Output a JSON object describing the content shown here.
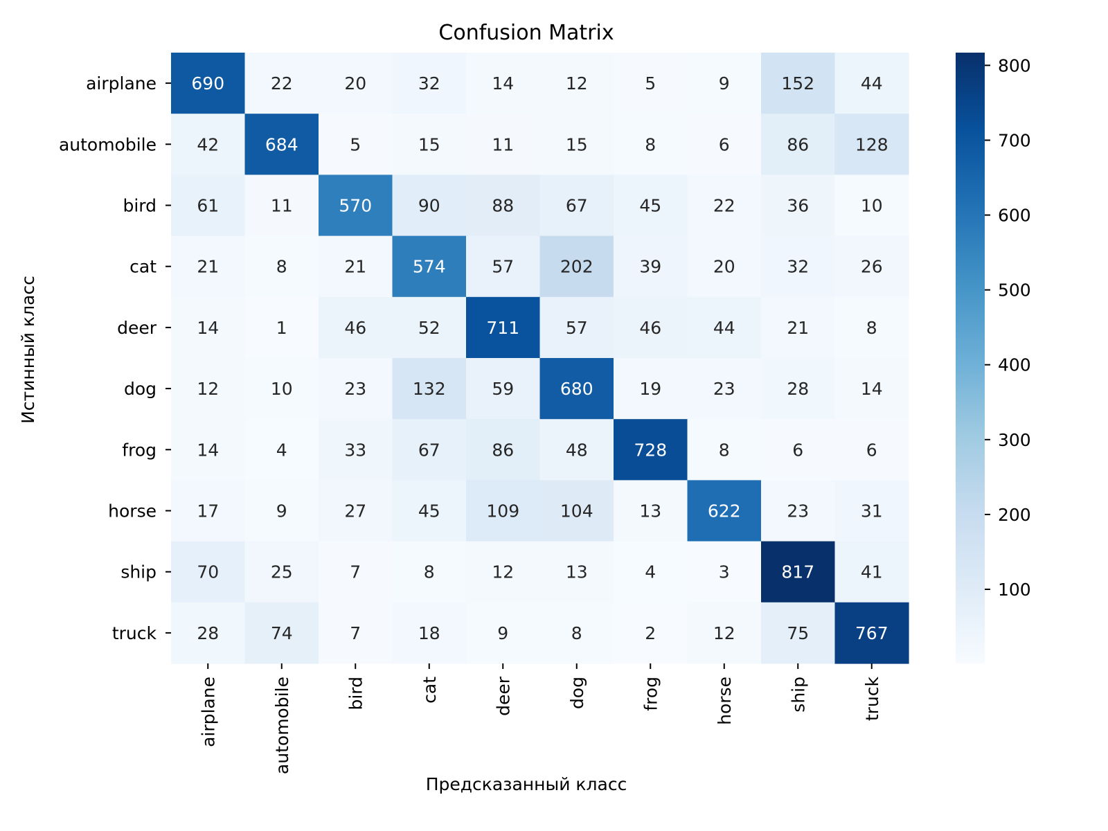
{
  "chart_data": {
    "type": "heatmap",
    "title": "Confusion Matrix",
    "xlabel": "Предсказанный класс",
    "ylabel": "Истинный класс",
    "categories": [
      "airplane",
      "automobile",
      "bird",
      "cat",
      "deer",
      "dog",
      "frog",
      "horse",
      "ship",
      "truck"
    ],
    "values": [
      [
        690,
        22,
        20,
        32,
        14,
        12,
        5,
        9,
        152,
        44
      ],
      [
        42,
        684,
        5,
        15,
        11,
        15,
        8,
        6,
        86,
        128
      ],
      [
        61,
        11,
        570,
        90,
        88,
        67,
        45,
        22,
        36,
        10
      ],
      [
        21,
        8,
        21,
        574,
        57,
        202,
        39,
        20,
        32,
        26
      ],
      [
        14,
        1,
        46,
        52,
        711,
        57,
        46,
        44,
        21,
        8
      ],
      [
        12,
        10,
        23,
        132,
        59,
        680,
        19,
        23,
        28,
        14
      ],
      [
        14,
        4,
        33,
        67,
        86,
        48,
        728,
        8,
        6,
        6
      ],
      [
        17,
        9,
        27,
        45,
        109,
        104,
        13,
        622,
        23,
        31
      ],
      [
        70,
        25,
        7,
        8,
        12,
        13,
        4,
        3,
        817,
        41
      ],
      [
        28,
        74,
        7,
        18,
        9,
        8,
        2,
        12,
        75,
        767
      ]
    ],
    "colormap": "Blues",
    "color_range": [
      1,
      817
    ],
    "colorbar_ticks": [
      100,
      200,
      300,
      400,
      500,
      600,
      700,
      800
    ]
  }
}
